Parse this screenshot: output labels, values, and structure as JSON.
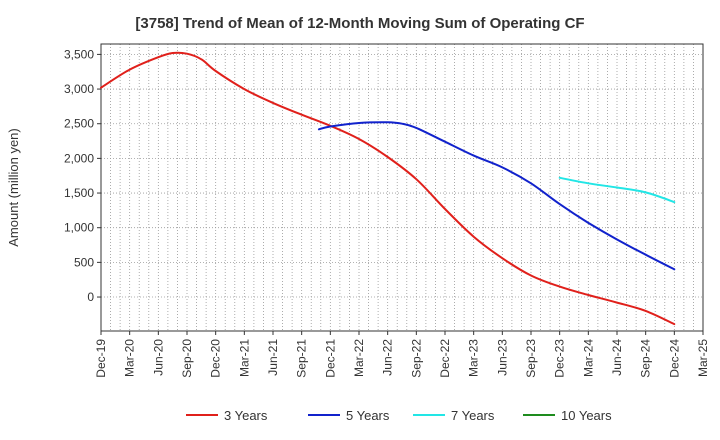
{
  "chart_data": {
    "type": "line",
    "title": "[3758]  Trend of Mean of 12-Month Moving Sum of Operating CF",
    "ylabel": "Amount (million yen)",
    "xlabel": "",
    "ylim": [
      -490,
      3650
    ],
    "y_ticks": [
      0,
      500,
      1000,
      1500,
      2000,
      2500,
      3000,
      3500
    ],
    "y_tick_labels": [
      "0",
      "500",
      "1,000",
      "1,500",
      "2,000",
      "2,500",
      "3,000",
      "3,500"
    ],
    "x_tick_labels": [
      "Dec-19",
      "Mar-20",
      "Jun-20",
      "Sep-20",
      "Dec-20",
      "Mar-21",
      "Jun-21",
      "Sep-21",
      "Dec-21",
      "Mar-22",
      "Jun-22",
      "Sep-22",
      "Dec-22",
      "Mar-23",
      "Jun-23",
      "Sep-23",
      "Dec-23",
      "Mar-24",
      "Jun-24",
      "Sep-24",
      "Dec-24",
      "Mar-25"
    ],
    "grid": true,
    "legend_position": "bottom",
    "series": [
      {
        "name": "3 Years",
        "color": "#e0201b",
        "points": [
          [
            0,
            3020
          ],
          [
            1,
            3280
          ],
          [
            2,
            3460
          ],
          [
            2.5,
            3520
          ],
          [
            3,
            3510
          ],
          [
            3.5,
            3430
          ],
          [
            4,
            3260
          ],
          [
            5,
            3000
          ],
          [
            6,
            2800
          ],
          [
            7,
            2630
          ],
          [
            8,
            2470
          ],
          [
            9,
            2280
          ],
          [
            10,
            2020
          ],
          [
            11,
            1700
          ],
          [
            12,
            1270
          ],
          [
            13,
            870
          ],
          [
            14,
            560
          ],
          [
            15,
            310
          ],
          [
            16,
            150
          ],
          [
            17,
            30
          ],
          [
            18,
            -80
          ],
          [
            19,
            -200
          ],
          [
            20,
            -390
          ]
        ]
      },
      {
        "name": "5 Years",
        "color": "#1122cc",
        "points": [
          [
            7.6,
            2420
          ],
          [
            8,
            2460
          ],
          [
            9,
            2510
          ],
          [
            10,
            2520
          ],
          [
            10.5,
            2500
          ],
          [
            11,
            2440
          ],
          [
            12,
            2240
          ],
          [
            13,
            2040
          ],
          [
            14,
            1870
          ],
          [
            15,
            1640
          ],
          [
            16,
            1340
          ],
          [
            17,
            1070
          ],
          [
            18,
            830
          ],
          [
            19,
            610
          ],
          [
            20,
            400
          ]
        ]
      },
      {
        "name": "7 Years",
        "color": "#22e6e6",
        "points": [
          [
            16,
            1720
          ],
          [
            17,
            1640
          ],
          [
            18,
            1580
          ],
          [
            19,
            1510
          ],
          [
            20,
            1370
          ]
        ]
      },
      {
        "name": "10 Years",
        "color": "#1e8c1e",
        "points": []
      }
    ]
  }
}
